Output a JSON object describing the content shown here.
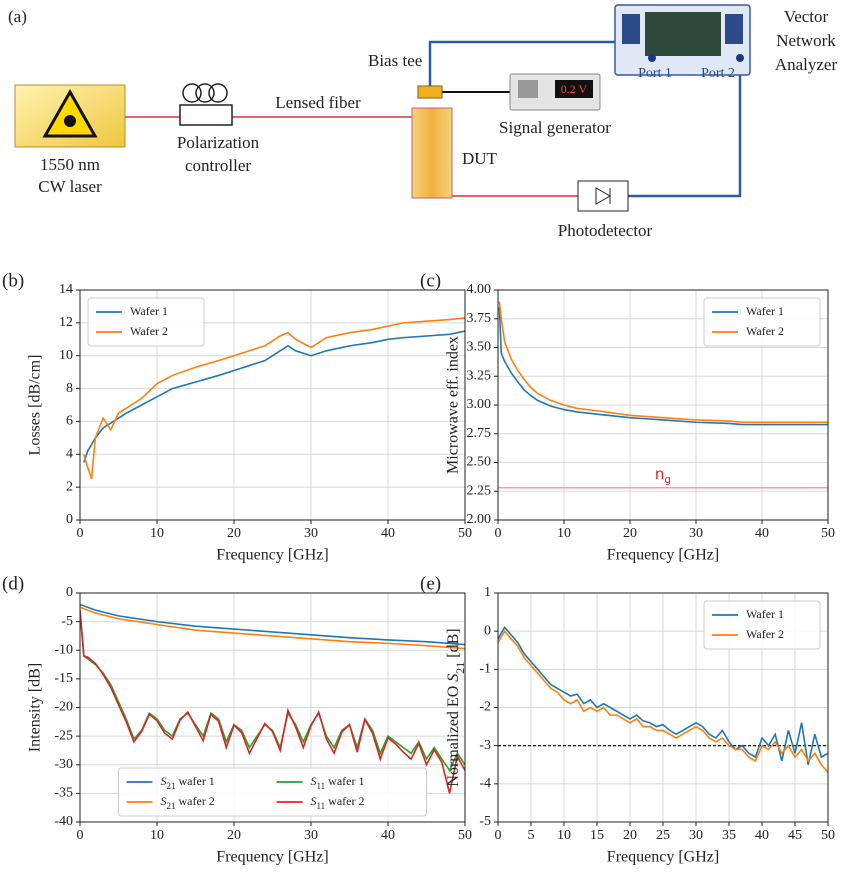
{
  "panel_a": {
    "label": "(a)",
    "laser": [
      "1550 nm",
      "CW laser"
    ],
    "polarization": [
      "Polarization",
      "controller"
    ],
    "fiber": "Lensed fiber",
    "bias_tee": "Bias tee",
    "generator_display": "0.2 V",
    "generator": "Signal generator",
    "dut": "DUT",
    "photodetector": "Photodetector",
    "vna": [
      "Vector",
      "Network",
      "Analyzer"
    ],
    "port1": "Port 1",
    "port2": "Port 2"
  },
  "chart_data": [
    {
      "type": "line",
      "panel_label": "(b)",
      "xlabel": "Frequency [GHz]",
      "ylabel": "Losses [dB/cm]",
      "xlim": [
        0,
        50
      ],
      "xticks": [
        0,
        10,
        20,
        30,
        40,
        50
      ],
      "ylim": [
        0,
        14
      ],
      "yticks": [
        0,
        2,
        4,
        6,
        8,
        10,
        12,
        14
      ],
      "grid": true,
      "legend": "upper left",
      "series": [
        {
          "name": "Wafer 1",
          "color": "#1f77b4",
          "x": [
            0.5,
            1,
            1.5,
            2,
            3,
            4,
            5,
            6,
            8,
            10,
            12,
            15,
            18,
            20,
            22,
            24,
            26,
            27,
            28,
            30,
            32,
            35,
            38,
            40,
            42,
            45,
            48,
            50
          ],
          "values": [
            3.5,
            4.2,
            4.6,
            5.0,
            5.6,
            5.9,
            6.2,
            6.5,
            7.0,
            7.5,
            8.0,
            8.4,
            8.8,
            9.1,
            9.4,
            9.7,
            10.3,
            10.6,
            10.3,
            10.0,
            10.3,
            10.6,
            10.8,
            11.0,
            11.1,
            11.2,
            11.3,
            11.5
          ]
        },
        {
          "name": "Wafer 2",
          "color": "#ff7f0e",
          "x": [
            0.5,
            1,
            1.5,
            2,
            3,
            4,
            5,
            6,
            8,
            10,
            12,
            15,
            18,
            20,
            22,
            24,
            26,
            27,
            28,
            30,
            32,
            35,
            38,
            40,
            42,
            45,
            48,
            50
          ],
          "values": [
            4.0,
            3.2,
            2.5,
            5.0,
            6.2,
            5.5,
            6.5,
            6.8,
            7.4,
            8.3,
            8.8,
            9.3,
            9.7,
            10.0,
            10.3,
            10.6,
            11.2,
            11.4,
            11.0,
            10.5,
            11.1,
            11.4,
            11.6,
            11.8,
            12.0,
            12.1,
            12.2,
            12.3
          ]
        }
      ]
    },
    {
      "type": "line",
      "panel_label": "(c)",
      "xlabel": "Frequency [GHz]",
      "ylabel": "Microwave eff. index",
      "xlim": [
        0,
        50
      ],
      "xticks": [
        0,
        10,
        20,
        30,
        40,
        50
      ],
      "ylim": [
        2,
        4
      ],
      "yticks": [
        {
          "value": 2,
          "label": "2.00"
        },
        2.25,
        {
          "value": 2.5,
          "label": "2.50"
        },
        2.75,
        {
          "value": 3,
          "label": "3.00"
        },
        3.25,
        {
          "value": 3.5,
          "label": "3.50"
        },
        3.75,
        {
          "value": 4,
          "label": "4.00"
        }
      ],
      "grid": true,
      "legend": "upper right",
      "hline": {
        "value": 2.28,
        "color": "#f08080",
        "dashed": false
      },
      "annotation": {
        "text": "n",
        "subscript": "g",
        "x": 25,
        "y": 2.4,
        "color": "#e02020"
      },
      "series": [
        {
          "name": "Wafer 1",
          "color": "#1f77b4",
          "x": [
            0.2,
            0.5,
            1,
            2,
            3,
            4,
            5,
            6,
            8,
            10,
            12,
            15,
            20,
            25,
            30,
            35,
            37,
            40,
            45,
            50
          ],
          "values": [
            3.85,
            3.45,
            3.38,
            3.28,
            3.2,
            3.13,
            3.08,
            3.04,
            2.99,
            2.96,
            2.94,
            2.92,
            2.89,
            2.87,
            2.85,
            2.84,
            2.83,
            2.83,
            2.83,
            2.83
          ]
        },
        {
          "name": "Wafer 2",
          "color": "#ff7f0e",
          "x": [
            0.2,
            0.5,
            1,
            2,
            3,
            4,
            5,
            6,
            8,
            10,
            12,
            15,
            20,
            25,
            30,
            35,
            37,
            40,
            45,
            50
          ],
          "values": [
            3.9,
            3.75,
            3.55,
            3.4,
            3.3,
            3.22,
            3.15,
            3.1,
            3.04,
            3.0,
            2.97,
            2.95,
            2.91,
            2.89,
            2.87,
            2.86,
            2.85,
            2.85,
            2.85,
            2.85
          ]
        }
      ]
    },
    {
      "type": "line",
      "panel_label": "(d)",
      "xlabel": "Frequency [GHz]",
      "ylabel": "Intensity [dB]",
      "xlim": [
        0,
        50
      ],
      "xticks": [
        0,
        10,
        20,
        30,
        40,
        50
      ],
      "ylim": [
        -40,
        0
      ],
      "yticks": [
        -40,
        -35,
        -30,
        -25,
        -20,
        -15,
        -10,
        -5,
        0
      ],
      "grid": true,
      "legend": "lower center",
      "legend_columns": 2,
      "series": [
        {
          "name": "S21 wafer 1",
          "color": "#1f77b4",
          "x": [
            0,
            2,
            5,
            10,
            15,
            20,
            25,
            30,
            35,
            40,
            45,
            50
          ],
          "values": [
            -2,
            -3,
            -4,
            -5,
            -5.8,
            -6.3,
            -6.8,
            -7.3,
            -7.8,
            -8.2,
            -8.5,
            -9
          ]
        },
        {
          "name": "S21 wafer 2",
          "color": "#ff7f0e",
          "x": [
            0,
            2,
            5,
            10,
            15,
            20,
            25,
            30,
            35,
            40,
            45,
            50
          ],
          "values": [
            -2.5,
            -3.5,
            -4.5,
            -5.5,
            -6.5,
            -7,
            -7.5,
            -8,
            -8.5,
            -8.8,
            -9.2,
            -9.7
          ]
        },
        {
          "name": "S11 wafer 1",
          "color": "#2ca02c",
          "x": [
            0,
            0.5,
            1,
            2,
            3,
            4,
            5,
            6,
            7,
            8,
            9,
            10,
            11,
            12,
            13,
            14,
            15,
            16,
            17,
            18,
            19,
            20,
            21,
            22,
            23,
            24,
            25,
            26,
            27,
            28,
            29,
            30,
            31,
            32,
            33,
            34,
            35,
            36,
            37,
            38,
            39,
            40,
            41,
            42,
            43,
            44,
            45,
            46,
            47,
            48,
            49,
            50
          ],
          "values": [
            -3,
            -11,
            -11.5,
            -12.5,
            -14,
            -16,
            -19,
            -22,
            -25.5,
            -24,
            -21,
            -22,
            -24,
            -25,
            -22,
            -21,
            -23,
            -25,
            -21,
            -22,
            -26,
            -23,
            -24,
            -27,
            -25,
            -23,
            -24,
            -27,
            -21,
            -23,
            -26,
            -23,
            -21,
            -25,
            -27,
            -24,
            -23,
            -27,
            -22,
            -24,
            -28,
            -25,
            -26,
            -27,
            -28,
            -26,
            -29,
            -27,
            -29,
            -31,
            -28,
            -30
          ]
        },
        {
          "name": "S11 wafer 2",
          "color": "#d62728",
          "x": [
            0,
            0.5,
            1,
            2,
            3,
            4,
            5,
            6,
            7,
            8,
            9,
            10,
            11,
            12,
            13,
            14,
            15,
            16,
            17,
            18,
            19,
            20,
            21,
            22,
            23,
            24,
            25,
            26,
            27,
            28,
            29,
            30,
            31,
            32,
            33,
            34,
            35,
            36,
            37,
            38,
            39,
            40,
            41,
            42,
            43,
            44,
            45,
            46,
            47,
            48,
            49,
            50
          ],
          "values": [
            -3,
            -11,
            -11.2,
            -12.3,
            -14.2,
            -16.5,
            -19.5,
            -22.5,
            -26,
            -24.2,
            -21.2,
            -22.3,
            -24.5,
            -25.5,
            -22.2,
            -20.8,
            -23.3,
            -25.8,
            -21.2,
            -22.4,
            -27,
            -23.1,
            -24.4,
            -28,
            -25.4,
            -22.8,
            -24.2,
            -27.5,
            -20.5,
            -23.4,
            -27,
            -23.2,
            -20.8,
            -25.5,
            -28,
            -24.3,
            -23,
            -27.8,
            -22.1,
            -24.5,
            -29,
            -25.3,
            -26.4,
            -27.8,
            -29,
            -26.3,
            -30,
            -27.4,
            -29.6,
            -35,
            -28.5,
            -31
          ]
        }
      ]
    },
    {
      "type": "line",
      "panel_label": "(e)",
      "xlabel": "Frequency [GHz]",
      "ylabel": "Normalized EO S21 [dB]",
      "xlim": [
        0,
        50
      ],
      "xticks": [
        0,
        5,
        10,
        15,
        20,
        25,
        30,
        35,
        40,
        45,
        50
      ],
      "ylim": [
        -5,
        1
      ],
      "yticks": [
        -5,
        -4,
        -3,
        -2,
        -1,
        0,
        1
      ],
      "grid": true,
      "legend": "upper right",
      "hline": {
        "value": -3,
        "color": "#000000",
        "dashed": true
      },
      "series": [
        {
          "name": "Wafer 1",
          "color": "#1f77b4",
          "x": [
            0,
            1,
            2,
            3,
            4,
            5,
            6,
            7,
            8,
            9,
            10,
            11,
            12,
            13,
            14,
            15,
            16,
            17,
            18,
            19,
            20,
            21,
            22,
            23,
            24,
            25,
            26,
            27,
            28,
            29,
            30,
            31,
            32,
            33,
            34,
            35,
            36,
            37,
            38,
            39,
            40,
            41,
            42,
            43,
            44,
            45,
            46,
            47,
            48,
            49,
            50
          ],
          "values": [
            -0.2,
            0.1,
            -0.1,
            -0.3,
            -0.6,
            -0.8,
            -1.0,
            -1.2,
            -1.4,
            -1.5,
            -1.6,
            -1.7,
            -1.65,
            -1.9,
            -1.8,
            -2.0,
            -1.9,
            -2.0,
            -2.1,
            -2.2,
            -2.3,
            -2.2,
            -2.35,
            -2.4,
            -2.5,
            -2.45,
            -2.6,
            -2.7,
            -2.6,
            -2.5,
            -2.4,
            -2.5,
            -2.7,
            -2.8,
            -2.6,
            -2.9,
            -3.1,
            -3.0,
            -3.2,
            -3.3,
            -2.8,
            -3.0,
            -2.7,
            -3.4,
            -2.6,
            -3.2,
            -2.4,
            -3.5,
            -2.7,
            -3.3,
            -3.2
          ]
        },
        {
          "name": "Wafer 2",
          "color": "#ff7f0e",
          "x": [
            0,
            1,
            2,
            3,
            4,
            5,
            6,
            7,
            8,
            9,
            10,
            11,
            12,
            13,
            14,
            15,
            16,
            17,
            18,
            19,
            20,
            21,
            22,
            23,
            24,
            25,
            26,
            27,
            28,
            29,
            30,
            31,
            32,
            33,
            34,
            35,
            36,
            37,
            38,
            39,
            40,
            41,
            42,
            43,
            44,
            45,
            46,
            47,
            48,
            49,
            50
          ],
          "values": [
            -0.3,
            0.0,
            -0.2,
            -0.4,
            -0.7,
            -0.9,
            -1.1,
            -1.3,
            -1.5,
            -1.6,
            -1.8,
            -1.9,
            -1.8,
            -2.1,
            -2.0,
            -2.1,
            -2.0,
            -2.2,
            -2.2,
            -2.3,
            -2.4,
            -2.3,
            -2.5,
            -2.5,
            -2.6,
            -2.6,
            -2.7,
            -2.8,
            -2.7,
            -2.6,
            -2.5,
            -2.6,
            -2.8,
            -2.9,
            -2.8,
            -3.0,
            -3.1,
            -3.1,
            -3.3,
            -3.4,
            -3.0,
            -3.1,
            -2.9,
            -3.2,
            -3.0,
            -3.3,
            -3.1,
            -3.4,
            -3.2,
            -3.5,
            -3.7
          ]
        }
      ]
    }
  ]
}
